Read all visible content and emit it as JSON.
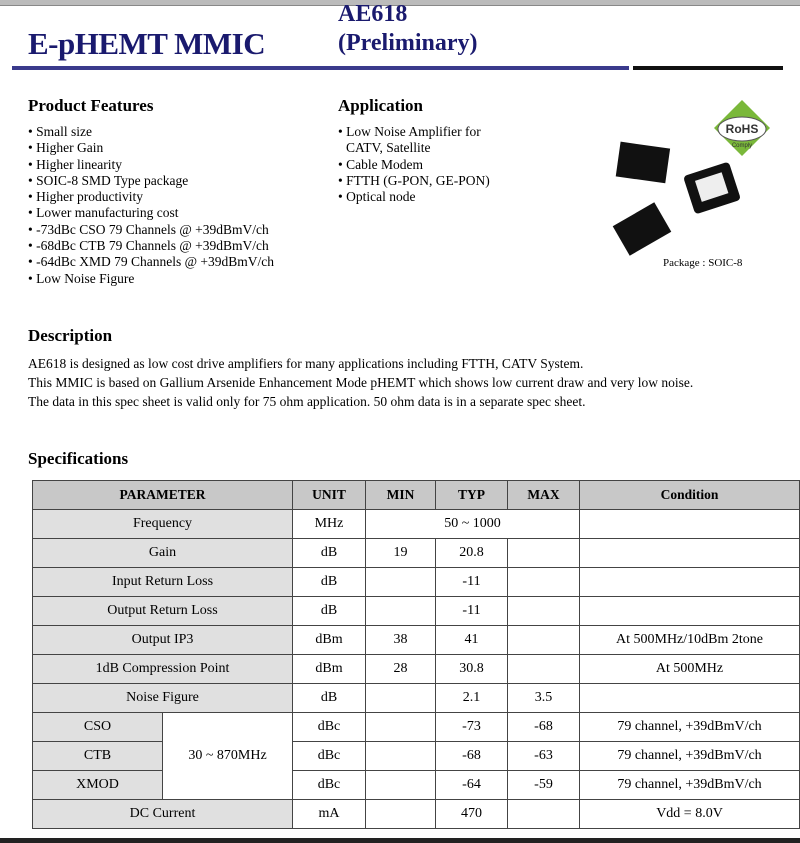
{
  "header": {
    "title": "E-pHEMT MMIC",
    "part": "AE618",
    "status": "(Preliminary)"
  },
  "features": {
    "title": "Product Features",
    "items": [
      "Small size",
      "Higher Gain",
      "Higher linearity",
      "SOIC-8 SMD Type package",
      "Higher productivity",
      "Lower manufacturing cost",
      "-73dBc CSO 79 Channels @ +39dBmV/ch",
      "-68dBc CTB 79 Channels @ +39dBmV/ch",
      "-64dBc XMD 79 Channels @ +39dBmV/ch",
      "Low Noise Figure"
    ]
  },
  "application": {
    "title": "Application",
    "items": [
      "Low Noise Amplifier for",
      "CATV, Satellite",
      "Cable Modem",
      "FTTH (G-PON, GE-PON)",
      "Optical node"
    ]
  },
  "image": {
    "rohs": "RoHS",
    "comply": "Comply",
    "package": "Package : SOIC-8"
  },
  "description": {
    "title": "Description",
    "lines": [
      "AE618 is designed as low cost drive amplifiers for many applications including FTTH, CATV System.",
      "This MMIC is based on Gallium Arsenide Enhancement Mode pHEMT which shows low current draw and very low noise.",
      "The data in this spec sheet is valid only for 75 ohm application. 50 ohm data is in a separate spec sheet."
    ]
  },
  "specs": {
    "title": "Specifications",
    "headers": [
      "PARAMETER",
      "UNIT",
      "MIN",
      "TYP",
      "MAX",
      "Condition"
    ],
    "rows": [
      {
        "param": "Frequency",
        "unit": "MHz",
        "span": "50 ~ 1000",
        "cond": ""
      },
      {
        "param": "Gain",
        "unit": "dB",
        "min": "19",
        "typ": "20.8",
        "max": "",
        "cond": ""
      },
      {
        "param": "Input Return Loss",
        "unit": "dB",
        "min": "",
        "typ": "-11",
        "max": "",
        "cond": ""
      },
      {
        "param": "Output Return Loss",
        "unit": "dB",
        "min": "",
        "typ": "-11",
        "max": "",
        "cond": ""
      },
      {
        "param": "Output IP3",
        "unit": "dBm",
        "min": "38",
        "typ": "41",
        "max": "",
        "cond": "At 500MHz/10dBm 2tone"
      },
      {
        "param": "1dB Compression Point",
        "unit": "dBm",
        "min": "28",
        "typ": "30.8",
        "max": "",
        "cond": "At 500MHz"
      },
      {
        "param": "Noise Figure",
        "unit": "dB",
        "min": "",
        "typ": "2.1",
        "max": "3.5",
        "cond": ""
      },
      {
        "param": "CSO",
        "group": "30 ~ 870MHz",
        "unit": "dBc",
        "min": "",
        "typ": "-73",
        "max": "-68",
        "cond": "79 channel, +39dBmV/ch"
      },
      {
        "param": "CTB",
        "unit": "dBc",
        "min": "",
        "typ": "-68",
        "max": "-63",
        "cond": "79 channel, +39dBmV/ch"
      },
      {
        "param": "XMOD",
        "unit": "dBc",
        "min": "",
        "typ": "-64",
        "max": "-59",
        "cond": "79 channel, +39dBmV/ch"
      },
      {
        "param": "DC Current",
        "unit": "mA",
        "min": "",
        "typ": "470",
        "max": "",
        "cond": "Vdd = 8.0V"
      }
    ]
  }
}
